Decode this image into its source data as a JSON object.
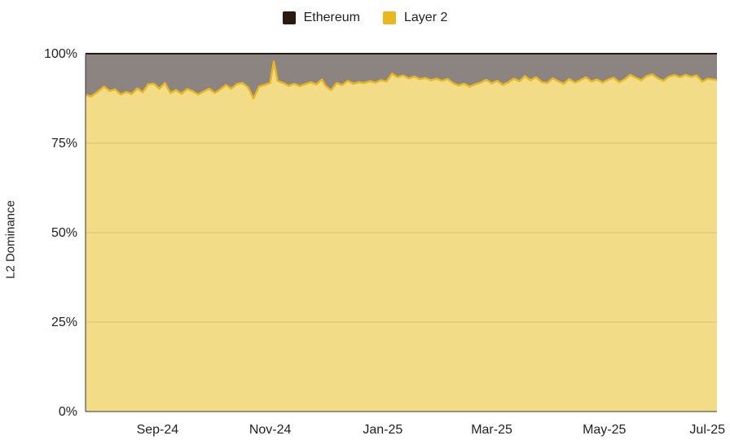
{
  "legend": {
    "items": [
      {
        "label": "Ethereum",
        "color": "#2a1a12"
      },
      {
        "label": "Layer 2",
        "color": "#e8b820"
      }
    ]
  },
  "chart_data": {
    "type": "area",
    "stacked": true,
    "normalized_percent": true,
    "title": "",
    "xlabel": "",
    "ylabel": "L2 Dominance",
    "ylim": [
      0,
      100
    ],
    "y_ticks": [
      "0%",
      "25%",
      "50%",
      "75%",
      "100%"
    ],
    "x_ticks": [
      {
        "label": "Sep-24",
        "date": "2024-09-01"
      },
      {
        "label": "Nov-24",
        "date": "2024-11-01"
      },
      {
        "label": "Jan-25",
        "date": "2025-01-01"
      },
      {
        "label": "Mar-25",
        "date": "2025-03-01"
      },
      {
        "label": "May-25",
        "date": "2025-05-01"
      },
      {
        "label": "Jul-25",
        "date": "2025-07-01"
      }
    ],
    "x_range": [
      "2024-07-24",
      "2025-07-01"
    ],
    "grid": "horizontal",
    "legend_position": "top",
    "series": [
      {
        "name": "Layer 2",
        "color": "#e8b820",
        "fill": "#f3dc88",
        "points": [
          [
            "2024-07-24",
            88.5
          ],
          [
            "2024-07-27",
            88.0
          ],
          [
            "2024-07-31",
            89.5
          ],
          [
            "2024-08-03",
            90.8
          ],
          [
            "2024-08-06",
            89.6
          ],
          [
            "2024-08-09",
            90.0
          ],
          [
            "2024-08-12",
            88.6
          ],
          [
            "2024-08-15",
            89.3
          ],
          [
            "2024-08-18",
            88.7
          ],
          [
            "2024-08-21",
            90.3
          ],
          [
            "2024-08-24",
            89.2
          ],
          [
            "2024-08-27",
            91.4
          ],
          [
            "2024-08-30",
            91.6
          ],
          [
            "2024-09-02",
            90.2
          ],
          [
            "2024-09-05",
            91.8
          ],
          [
            "2024-09-08",
            89.0
          ],
          [
            "2024-09-11",
            89.8
          ],
          [
            "2024-09-14",
            88.8
          ],
          [
            "2024-09-17",
            90.1
          ],
          [
            "2024-09-20",
            89.5
          ],
          [
            "2024-09-23",
            88.6
          ],
          [
            "2024-09-26",
            89.4
          ],
          [
            "2024-09-29",
            90.2
          ],
          [
            "2024-10-02",
            89.0
          ],
          [
            "2024-10-05",
            90.0
          ],
          [
            "2024-10-08",
            91.2
          ],
          [
            "2024-10-11",
            90.2
          ],
          [
            "2024-10-14",
            91.5
          ],
          [
            "2024-10-17",
            91.8
          ],
          [
            "2024-10-20",
            90.6
          ],
          [
            "2024-10-23",
            87.5
          ],
          [
            "2024-10-26",
            90.8
          ],
          [
            "2024-10-29",
            91.3
          ],
          [
            "2024-11-01",
            91.8
          ],
          [
            "2024-11-03",
            97.8
          ],
          [
            "2024-11-05",
            92.4
          ],
          [
            "2024-11-08",
            91.8
          ],
          [
            "2024-11-11",
            91.0
          ],
          [
            "2024-11-14",
            91.6
          ],
          [
            "2024-11-17",
            90.9
          ],
          [
            "2024-11-20",
            91.5
          ],
          [
            "2024-11-23",
            92.0
          ],
          [
            "2024-11-26",
            91.4
          ],
          [
            "2024-11-29",
            92.8
          ],
          [
            "2024-12-01",
            91.0
          ],
          [
            "2024-12-04",
            89.8
          ],
          [
            "2024-12-07",
            91.8
          ],
          [
            "2024-12-10",
            91.2
          ],
          [
            "2024-12-13",
            92.4
          ],
          [
            "2024-12-16",
            91.6
          ],
          [
            "2024-12-19",
            92.0
          ],
          [
            "2024-12-22",
            91.8
          ],
          [
            "2024-12-25",
            92.3
          ],
          [
            "2024-12-28",
            91.9
          ],
          [
            "2024-12-31",
            92.6
          ],
          [
            "2025-01-03",
            92.2
          ],
          [
            "2025-01-06",
            94.4
          ],
          [
            "2025-01-09",
            93.4
          ],
          [
            "2025-01-12",
            93.9
          ],
          [
            "2025-01-15",
            93.1
          ],
          [
            "2025-01-18",
            93.6
          ],
          [
            "2025-01-21",
            92.9
          ],
          [
            "2025-01-24",
            93.2
          ],
          [
            "2025-01-27",
            92.6
          ],
          [
            "2025-01-30",
            93.0
          ],
          [
            "2025-02-02",
            92.4
          ],
          [
            "2025-02-05",
            92.9
          ],
          [
            "2025-02-08",
            91.8
          ],
          [
            "2025-02-11",
            91.1
          ],
          [
            "2025-02-14",
            91.6
          ],
          [
            "2025-02-17",
            90.8
          ],
          [
            "2025-02-20",
            91.4
          ],
          [
            "2025-02-23",
            91.9
          ],
          [
            "2025-02-26",
            92.7
          ],
          [
            "2025-03-01",
            91.7
          ],
          [
            "2025-03-04",
            92.4
          ],
          [
            "2025-03-07",
            91.3
          ],
          [
            "2025-03-10",
            92.0
          ],
          [
            "2025-03-13",
            93.0
          ],
          [
            "2025-03-16",
            92.3
          ],
          [
            "2025-03-19",
            93.7
          ],
          [
            "2025-03-22",
            92.6
          ],
          [
            "2025-03-25",
            93.4
          ],
          [
            "2025-03-28",
            92.1
          ],
          [
            "2025-03-31",
            91.8
          ],
          [
            "2025-04-03",
            93.1
          ],
          [
            "2025-04-06",
            92.3
          ],
          [
            "2025-04-09",
            91.6
          ],
          [
            "2025-04-12",
            92.9
          ],
          [
            "2025-04-15",
            91.9
          ],
          [
            "2025-04-18",
            92.6
          ],
          [
            "2025-04-21",
            93.4
          ],
          [
            "2025-04-24",
            92.2
          ],
          [
            "2025-04-27",
            92.8
          ],
          [
            "2025-04-30",
            91.9
          ],
          [
            "2025-05-03",
            92.7
          ],
          [
            "2025-05-06",
            93.3
          ],
          [
            "2025-05-09",
            92.0
          ],
          [
            "2025-05-12",
            92.8
          ],
          [
            "2025-05-15",
            94.1
          ],
          [
            "2025-05-18",
            93.3
          ],
          [
            "2025-05-21",
            92.6
          ],
          [
            "2025-05-24",
            93.8
          ],
          [
            "2025-05-27",
            94.2
          ],
          [
            "2025-05-30",
            93.1
          ],
          [
            "2025-06-02",
            92.4
          ],
          [
            "2025-06-05",
            93.6
          ],
          [
            "2025-06-08",
            94.0
          ],
          [
            "2025-06-11",
            93.4
          ],
          [
            "2025-06-14",
            94.1
          ],
          [
            "2025-06-17",
            93.5
          ],
          [
            "2025-06-20",
            93.9
          ],
          [
            "2025-06-23",
            92.2
          ],
          [
            "2025-06-26",
            93.0
          ],
          [
            "2025-06-29",
            92.8
          ],
          [
            "2025-07-01",
            92.6
          ]
        ]
      },
      {
        "name": "Ethereum",
        "color": "#2a1a12",
        "fill": "#8c8480",
        "note_values": "complement of Layer 2 (100% minus Layer 2 share)"
      }
    ]
  }
}
